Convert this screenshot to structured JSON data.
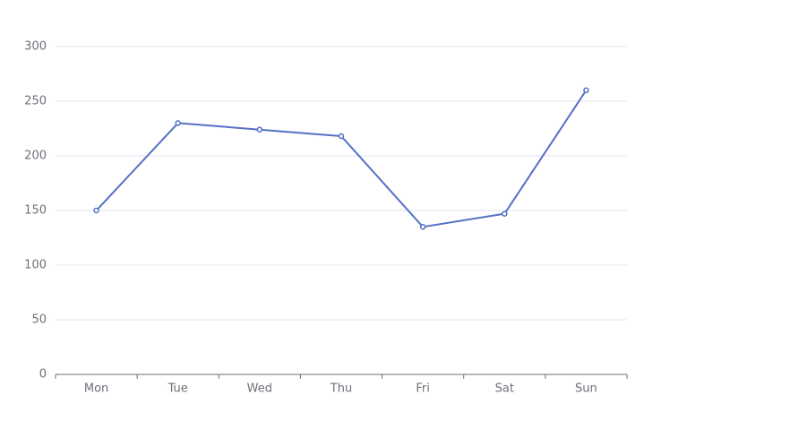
{
  "chart_data": {
    "type": "line",
    "categories": [
      "Mon",
      "Tue",
      "Wed",
      "Thu",
      "Fri",
      "Sat",
      "Sun"
    ],
    "values": [
      150,
      230,
      224,
      218,
      135,
      147,
      260
    ],
    "color": "#5470c6",
    "ylim": [
      0,
      300
    ],
    "yticks": [
      0,
      50,
      100,
      150,
      200,
      250,
      300
    ],
    "grid": true
  }
}
